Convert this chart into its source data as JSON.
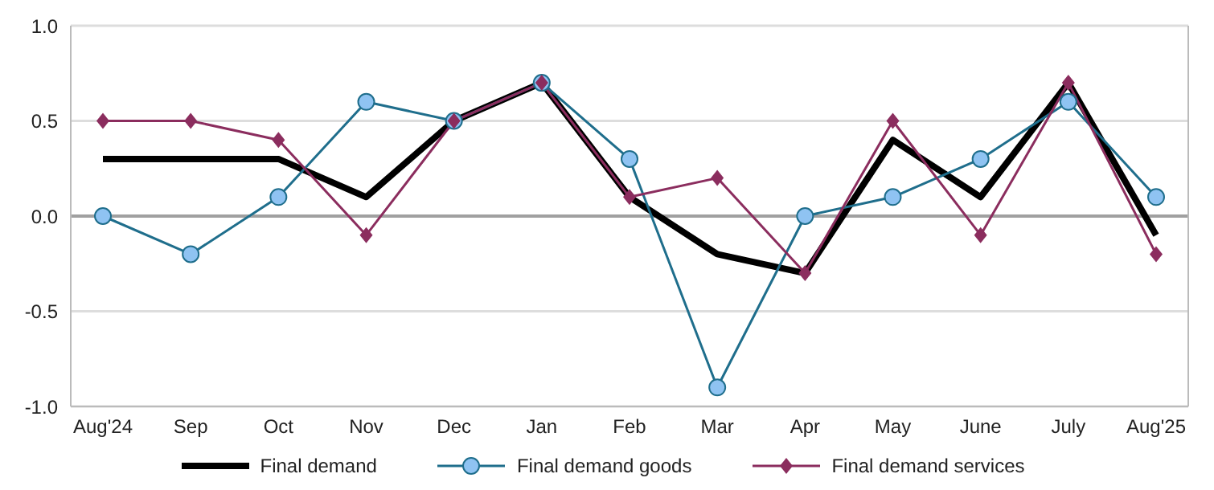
{
  "chart_data": {
    "type": "line",
    "categories": [
      "Aug'24",
      "Sep",
      "Oct",
      "Nov",
      "Dec",
      "Jan",
      "Feb",
      "Mar",
      "Apr",
      "May",
      "June",
      "July",
      "Aug'25"
    ],
    "series": [
      {
        "name": "Final demand",
        "color": "#000000",
        "marker": "none",
        "values": [
          0.3,
          0.3,
          0.3,
          0.1,
          0.5,
          0.7,
          0.1,
          -0.2,
          -0.3,
          0.4,
          0.1,
          0.7,
          -0.1
        ]
      },
      {
        "name": "Final demand goods",
        "color": "#1f6e8c",
        "marker": "circle",
        "values": [
          0,
          -0.2,
          0.1,
          0.6,
          0.5,
          0.7,
          0.3,
          -0.9,
          0,
          0.1,
          0.3,
          0.6,
          0.1
        ]
      },
      {
        "name": "Final demand services",
        "color": "#8b2d5e",
        "marker": "diamond",
        "values": [
          0.5,
          0.5,
          0.4,
          -0.1,
          0.5,
          0.7,
          0.1,
          0.2,
          -0.3,
          0.5,
          -0.1,
          0.7,
          -0.2
        ]
      }
    ],
    "ylim": [
      -1,
      1
    ],
    "yticks": [
      {
        "value": -1,
        "label": "-1.0"
      },
      {
        "value": -0.5,
        "label": "-0.5"
      },
      {
        "value": 0,
        "label": "0.0"
      },
      {
        "value": 0.5,
        "label": "0.5"
      },
      {
        "value": 1,
        "label": "1.0"
      }
    ],
    "ref_lines": [
      {
        "axis": "y",
        "value": 0,
        "color": "#a0a0a0"
      }
    ],
    "grid": "y",
    "legend": "bottom",
    "line_style": "solid"
  }
}
